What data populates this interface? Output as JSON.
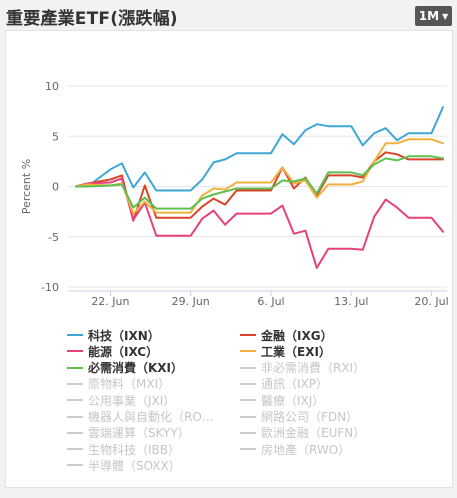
{
  "header": {
    "title": "重要產業ETF(漲跌幅)",
    "range_label": "1M"
  },
  "chart_data": {
    "type": "line",
    "title": "",
    "xlabel": "",
    "ylabel": "Percent %",
    "ylim": [
      -10,
      10
    ],
    "yticks": [
      -10,
      -5,
      0,
      5,
      10
    ],
    "xticks": [
      "22. Jun",
      "29. Jun",
      "6. Jul",
      "13. Jul",
      "20. Jul"
    ],
    "grid": "horizontal",
    "legend_position": "bottom",
    "x": [
      "2020-06-19",
      "2020-06-20",
      "2020-06-22",
      "2020-06-23",
      "2020-06-24",
      "2020-06-25",
      "2020-06-26",
      "2020-06-27",
      "2020-06-29",
      "2020-06-30",
      "2020-07-01",
      "2020-07-02",
      "2020-07-03",
      "2020-07-04",
      "2020-07-06",
      "2020-07-07",
      "2020-07-08",
      "2020-07-09",
      "2020-07-10",
      "2020-07-11",
      "2020-07-13",
      "2020-07-14",
      "2020-07-15",
      "2020-07-16",
      "2020-07-17",
      "2020-07-18",
      "2020-07-20",
      "2020-07-21"
    ],
    "series": [
      {
        "name": "科技（IXN）",
        "color": "#3fa7d6",
        "values": [
          0,
          0,
          1.7,
          2.3,
          -0.1,
          1.4,
          -0.4,
          -0.4,
          -0.4,
          0.7,
          2.4,
          2.7,
          3.3,
          3.3,
          3.3,
          5.2,
          4.2,
          5.6,
          6.2,
          6.0,
          6.0,
          4.1,
          5.3,
          5.8,
          4.6,
          5.3,
          5.3,
          7.9
        ]
      },
      {
        "name": "金融（IXG）",
        "color": "#d9442a",
        "values": [
          0,
          0.3,
          0.7,
          1.1,
          -3.4,
          0.1,
          -3.1,
          -3.1,
          -3.1,
          -2.0,
          -1.2,
          -1.8,
          -0.4,
          -0.4,
          -0.4,
          1.9,
          -0.2,
          0.9,
          -0.9,
          1.1,
          1.1,
          0.9,
          2.5,
          3.4,
          3.2,
          2.7,
          2.7,
          2.7
        ]
      },
      {
        "name": "能源（IXC）",
        "color": "#e6417a",
        "values": [
          0,
          0.3,
          0.4,
          0.8,
          -3.3,
          -1.6,
          -4.9,
          -4.9,
          -4.9,
          -3.2,
          -2.4,
          -3.8,
          -2.7,
          -2.7,
          -2.7,
          -1.9,
          -4.7,
          -4.4,
          -8.1,
          -6.2,
          -6.2,
          -6.3,
          -3.0,
          -1.3,
          -2.1,
          -3.1,
          -3.1,
          -4.5
        ]
      },
      {
        "name": "工業（EXI）",
        "color": "#f2b13c",
        "values": [
          0,
          0.2,
          0.1,
          0.3,
          -2.7,
          -1.5,
          -2.6,
          -2.6,
          -2.6,
          -0.9,
          -0.2,
          -0.3,
          0.4,
          0.4,
          0.4,
          1.9,
          0.3,
          0.6,
          -1.1,
          0.2,
          0.2,
          0.5,
          2.5,
          4.3,
          4.3,
          4.7,
          4.7,
          4.3
        ]
      },
      {
        "name": "必需消費（KXI）",
        "color": "#5fbf4f",
        "values": [
          0,
          0,
          0.1,
          0.2,
          -2.1,
          -1.1,
          -2.2,
          -2.2,
          -2.2,
          -1.2,
          -0.8,
          -0.5,
          -0.2,
          -0.2,
          -0.2,
          0.6,
          0.5,
          0.8,
          -0.7,
          1.4,
          1.4,
          1.1,
          2.2,
          2.8,
          2.6,
          3.0,
          3.0,
          2.8
        ]
      }
    ],
    "legend": [
      {
        "label": "科技（IXN）",
        "color": "#3fa7d6",
        "visible": true
      },
      {
        "label": "金融（IXG）",
        "color": "#d9442a",
        "visible": true
      },
      {
        "label": "能源（IXC）",
        "color": "#e6417a",
        "visible": true
      },
      {
        "label": "工業（EXI）",
        "color": "#f2b13c",
        "visible": true
      },
      {
        "label": "必需消費（KXI）",
        "color": "#5fbf4f",
        "visible": true
      },
      {
        "label": "非必需消費（RXI）",
        "color": "#cccccc",
        "visible": false
      },
      {
        "label": "原物料（MXI）",
        "color": "#cccccc",
        "visible": false
      },
      {
        "label": "通訊（IXP）",
        "color": "#cccccc",
        "visible": false
      },
      {
        "label": "公用事業（JXI）",
        "color": "#cccccc",
        "visible": false
      },
      {
        "label": "醫療（IXJ）",
        "color": "#cccccc",
        "visible": false
      },
      {
        "label": "機器人與自動化（RO…",
        "color": "#cccccc",
        "visible": false
      },
      {
        "label": "網路公司（FDN）",
        "color": "#cccccc",
        "visible": false
      },
      {
        "label": "雲端運算（SKYY）",
        "color": "#cccccc",
        "visible": false
      },
      {
        "label": "歐洲金融（EUFN）",
        "color": "#cccccc",
        "visible": false
      },
      {
        "label": "生物科技（IBB）",
        "color": "#cccccc",
        "visible": false
      },
      {
        "label": "房地產（RWO）",
        "color": "#cccccc",
        "visible": false
      },
      {
        "label": "半導體（SOXX）",
        "color": "#cccccc",
        "visible": false
      }
    ]
  }
}
